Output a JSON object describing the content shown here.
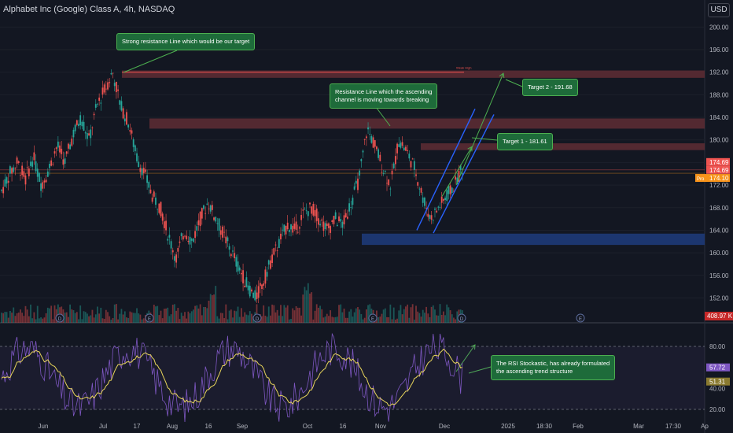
{
  "header": {
    "title": "Alphabet Inc (Google) Class A, 4h, NASDAQ",
    "currency_button": "USD"
  },
  "annotations": {
    "strong_resistance": "Strong resistance Line which would be our target",
    "resistance_ascending": [
      "Resistance Line which the ascending",
      "channel is moving towards breaking"
    ],
    "target_1": "Target 1 - 181.61",
    "target_2": "Target 2 - 191.68",
    "rsi_note": [
      "The RSI Stockastic, has already formulated",
      "the ascending trend structure"
    ],
    "weak_high": "Weak High"
  },
  "colors": {
    "background": "#131722",
    "bull": "#26a69a",
    "bear": "#ef5350",
    "resistance_zone": "#5b2b33",
    "support_zone": "#1e3a78",
    "channel": "#2962ff",
    "callout_bg": "#1e6b3a",
    "rsi_k": "#7e57c2",
    "rsi_d": "#e8d55a",
    "arrow": "#4caf50"
  },
  "chart_data": {
    "type": "candlestick",
    "price_axis": {
      "range": [
        149,
        202
      ],
      "ticks": [
        152,
        156,
        160,
        164,
        168,
        172,
        176,
        180,
        184,
        188,
        192,
        196,
        200
      ],
      "tick_labels": [
        "152.00",
        "156.00",
        "160.00",
        "164.00",
        "168.00",
        "172.00",
        "176.00",
        "180.00",
        "184.00",
        "188.00",
        "192.00",
        "196.00",
        "200.00"
      ]
    },
    "x_axis": {
      "labels": [
        "Jun",
        "Jul",
        "17",
        "Aug",
        "16",
        "Sep",
        "Oct",
        "16",
        "Nov",
        "Dec",
        "2025",
        "18:30",
        "Feb",
        "Mar",
        "17:30",
        "Ap"
      ]
    },
    "price_badges": [
      {
        "label": "174.69",
        "value": 174.69,
        "color": "#ef5350"
      },
      {
        "label": "174.69",
        "value": 174.69,
        "color": "#ef5350"
      },
      {
        "label": "174.10",
        "value": 174.1,
        "color": "#f7931a",
        "tag": "Pro"
      }
    ],
    "volume_badge": "408.97 K",
    "zones": [
      {
        "kind": "resistance",
        "from": 191.0,
        "to": 192.3
      },
      {
        "kind": "resistance",
        "from": 182.0,
        "to": 183.8
      },
      {
        "kind": "resistance",
        "from": 178.2,
        "to": 179.4
      },
      {
        "kind": "support",
        "from": 161.4,
        "to": 163.4
      }
    ],
    "price_path": [
      [
        171,
        0
      ],
      [
        174,
        8
      ],
      [
        176,
        16
      ],
      [
        173,
        24
      ],
      [
        177,
        32
      ],
      [
        172,
        40
      ],
      [
        175,
        48
      ],
      [
        179,
        56
      ],
      [
        176,
        64
      ],
      [
        181,
        72
      ],
      [
        184,
        80
      ],
      [
        180,
        88
      ],
      [
        186,
        96
      ],
      [
        189,
        104
      ],
      [
        192,
        112
      ],
      [
        186,
        120
      ],
      [
        183,
        128
      ],
      [
        177,
        136
      ],
      [
        174,
        144
      ],
      [
        170,
        152
      ],
      [
        168,
        160
      ],
      [
        163,
        168
      ],
      [
        159,
        176
      ],
      [
        164,
        184
      ],
      [
        162,
        192
      ],
      [
        166,
        200
      ],
      [
        169,
        208
      ],
      [
        166,
        216
      ],
      [
        163,
        224
      ],
      [
        160,
        232
      ],
      [
        157,
        240
      ],
      [
        154,
        248
      ],
      [
        152,
        256
      ],
      [
        155,
        264
      ],
      [
        159,
        272
      ],
      [
        162,
        280
      ],
      [
        165,
        288
      ],
      [
        164,
        296
      ],
      [
        167,
        304
      ],
      [
        168,
        312
      ],
      [
        166,
        320
      ],
      [
        164,
        328
      ],
      [
        166,
        336
      ],
      [
        165,
        344
      ],
      [
        169,
        352
      ],
      [
        173,
        360
      ],
      [
        182,
        368
      ],
      [
        179,
        376
      ],
      [
        175,
        384
      ],
      [
        172,
        392
      ],
      [
        180,
        400
      ],
      [
        178,
        408
      ],
      [
        175,
        416
      ],
      [
        170,
        424
      ],
      [
        166,
        432
      ],
      [
        168,
        440
      ],
      [
        170,
        448
      ],
      [
        172,
        456
      ],
      [
        175,
        464
      ]
    ],
    "rsi": {
      "axis_ticks": [
        20,
        40,
        60,
        80
      ],
      "tick_labels": [
        "20.00",
        "40.00",
        "60.00",
        "80.00"
      ],
      "levels": [
        80,
        20
      ],
      "k_label": "57.72",
      "d_label": "51.31"
    }
  }
}
